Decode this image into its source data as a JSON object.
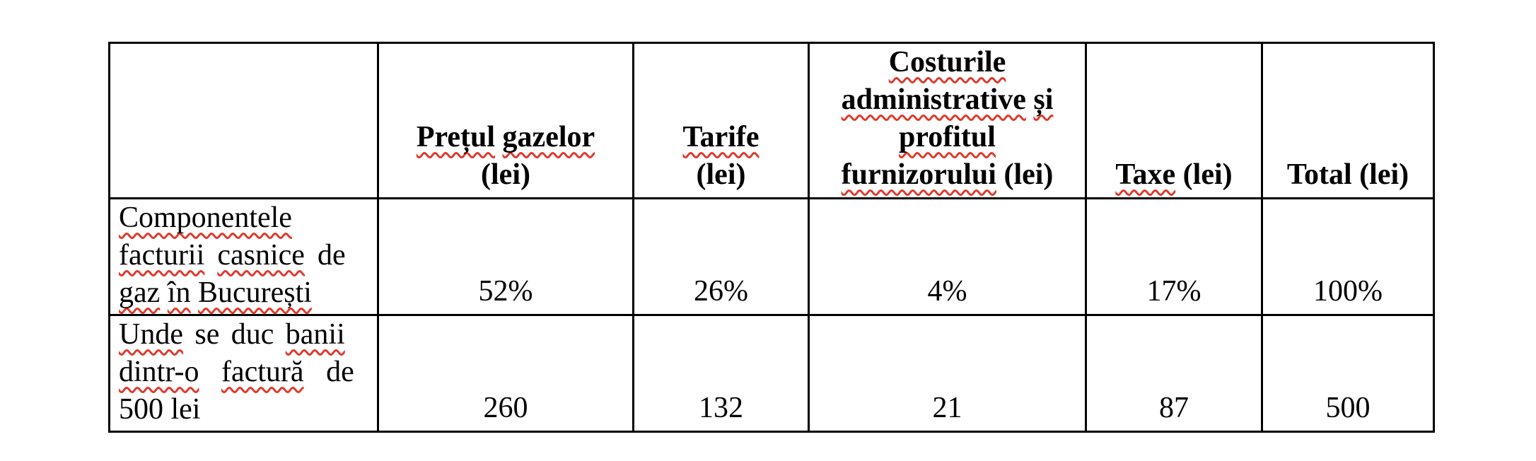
{
  "page": {
    "background_color": "#ffffff",
    "text_color": "#000000",
    "squiggle_color": "#e03a2c"
  },
  "table": {
    "columns_plain": [
      "",
      "Prețul gazelor (lei)",
      "Tarife (lei)",
      "Costurile administrative și profitul furnizorului (lei)",
      "Taxe (lei)",
      "Total (lei)"
    ],
    "header_cells": [
      {
        "plain": "",
        "lines": []
      },
      {
        "plain": "Prețul gazelor (lei)",
        "lines": [
          {
            "runs": [
              [
                "Prețul",
                true
              ],
              [
                " ",
                false
              ],
              [
                "gazelor",
                true
              ]
            ]
          },
          {
            "runs": [
              [
                "(lei)",
                false
              ]
            ]
          }
        ]
      },
      {
        "plain": "Tarife (lei)",
        "lines": [
          {
            "runs": [
              [
                "Tarife",
                true
              ]
            ]
          },
          {
            "runs": [
              [
                "(lei)",
                false
              ]
            ]
          }
        ]
      },
      {
        "plain": "Costurile administrative și profitul furnizorului (lei)",
        "lines": [
          {
            "runs": [
              [
                "Costurile",
                true
              ]
            ]
          },
          {
            "runs": [
              [
                "administrative",
                true
              ],
              [
                " ",
                false
              ],
              [
                "și",
                true
              ]
            ]
          },
          {
            "runs": [
              [
                "profitul",
                true
              ]
            ]
          },
          {
            "runs": [
              [
                "furnizorului",
                true
              ],
              [
                " (lei)",
                false
              ]
            ]
          }
        ]
      },
      {
        "plain": "Taxe (lei)",
        "lines": [
          {
            "runs": [
              [
                "Taxe",
                true
              ],
              [
                " (lei)",
                false
              ]
            ]
          }
        ]
      },
      {
        "plain": "Total (lei)",
        "lines": [
          {
            "runs": [
              [
                "Total (lei)",
                false
              ]
            ]
          }
        ]
      }
    ],
    "rows": [
      {
        "label_plain": "Componentele facturii casnice de gaz în București",
        "label_lines": [
          {
            "runs": [
              [
                "Componentele",
                true
              ]
            ]
          },
          {
            "runs": [
              [
                "facturii",
                true
              ],
              [
                " ",
                false
              ],
              [
                "casnice",
                true
              ],
              [
                " de",
                false
              ]
            ]
          },
          {
            "runs": [
              [
                "gaz",
                true
              ],
              [
                " ",
                false
              ],
              [
                "în",
                true
              ],
              [
                " ",
                false
              ],
              [
                "București",
                true
              ]
            ]
          }
        ],
        "values": [
          "52%",
          "26%",
          "4%",
          "17%",
          "100%"
        ]
      },
      {
        "label_plain": "Unde se duc banii dintr-o factură de 500 lei",
        "label_lines": [
          {
            "runs": [
              [
                "Unde",
                true
              ],
              [
                " se duc ",
                false
              ],
              [
                "banii",
                true
              ]
            ]
          },
          {
            "runs": [
              [
                "dintr-o",
                true
              ],
              [
                " ",
                false
              ],
              [
                "factură",
                true
              ],
              [
                " de",
                false
              ]
            ]
          },
          {
            "runs": [
              [
                "500 lei",
                false
              ]
            ]
          }
        ],
        "values": [
          "260",
          "132",
          "21",
          "87",
          "500"
        ]
      }
    ]
  }
}
